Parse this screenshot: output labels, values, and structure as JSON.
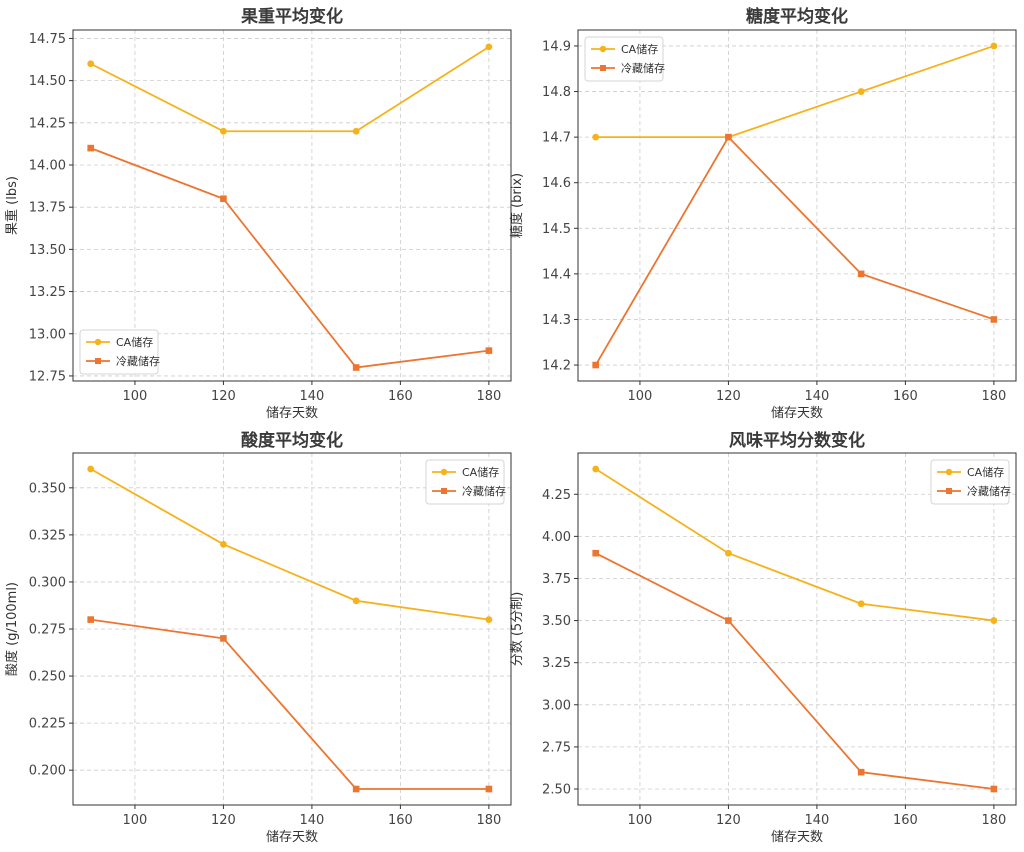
{
  "chart_data": [
    {
      "type": "line",
      "title": "果重平均变化",
      "xlabel": "储存天数",
      "ylabel": "果重 (lbs)",
      "x": [
        90,
        120,
        150,
        180
      ],
      "xlim": [
        86,
        185
      ],
      "xticks": [
        100,
        120,
        140,
        160,
        180
      ],
      "ylim": [
        12.72,
        14.8
      ],
      "yticks": [
        12.75,
        13.0,
        13.25,
        13.5,
        13.75,
        14.0,
        14.25,
        14.5,
        14.75
      ],
      "ytick_labels": [
        "12.75",
        "13.00",
        "13.25",
        "13.50",
        "13.75",
        "14.00",
        "14.25",
        "14.50",
        "14.75"
      ],
      "grid": true,
      "legend_position": "lower-left",
      "series": [
        {
          "name": "CA储存",
          "values": [
            14.6,
            14.2,
            14.2,
            14.7
          ],
          "color": "#F6B21B",
          "marker": "circle"
        },
        {
          "name": "冷藏储存",
          "values": [
            14.1,
            13.8,
            12.8,
            12.9
          ],
          "color": "#EC7530",
          "marker": "square"
        }
      ]
    },
    {
      "type": "line",
      "title": "糖度平均变化",
      "xlabel": "储存天数",
      "ylabel": "糖度 (brix)",
      "x": [
        90,
        120,
        150,
        180
      ],
      "xlim": [
        86,
        185
      ],
      "xticks": [
        100,
        120,
        140,
        160,
        180
      ],
      "ylim": [
        14.165,
        14.935
      ],
      "yticks": [
        14.2,
        14.3,
        14.4,
        14.5,
        14.6,
        14.7,
        14.8,
        14.9
      ],
      "ytick_labels": [
        "14.2",
        "14.3",
        "14.4",
        "14.5",
        "14.6",
        "14.7",
        "14.8",
        "14.9"
      ],
      "grid": true,
      "legend_position": "upper-left",
      "series": [
        {
          "name": "CA储存",
          "values": [
            14.7,
            14.7,
            14.8,
            14.9
          ],
          "color": "#F6B21B",
          "marker": "circle"
        },
        {
          "name": "冷藏储存",
          "values": [
            14.2,
            14.7,
            14.4,
            14.3
          ],
          "color": "#EC7530",
          "marker": "square"
        }
      ]
    },
    {
      "type": "line",
      "title": "酸度平均变化",
      "xlabel": "储存天数",
      "ylabel": "酸度 (g/100ml)",
      "x": [
        90,
        120,
        150,
        180
      ],
      "xlim": [
        86,
        185
      ],
      "xticks": [
        100,
        120,
        140,
        160,
        180
      ],
      "ylim": [
        0.1815,
        0.3685
      ],
      "yticks": [
        0.2,
        0.225,
        0.25,
        0.275,
        0.3,
        0.325,
        0.35
      ],
      "ytick_labels": [
        "0.200",
        "0.225",
        "0.250",
        "0.275",
        "0.300",
        "0.325",
        "0.350"
      ],
      "grid": true,
      "legend_position": "upper-right",
      "series": [
        {
          "name": "CA储存",
          "values": [
            0.36,
            0.32,
            0.29,
            0.28
          ],
          "color": "#F6B21B",
          "marker": "circle"
        },
        {
          "name": "冷藏储存",
          "values": [
            0.28,
            0.27,
            0.19,
            0.19
          ],
          "color": "#EC7530",
          "marker": "square"
        }
      ]
    },
    {
      "type": "line",
      "title": "风味平均分数变化",
      "xlabel": "储存天数",
      "ylabel": "分数 (5分制)",
      "x": [
        90,
        120,
        150,
        180
      ],
      "xlim": [
        86,
        185
      ],
      "xticks": [
        100,
        120,
        140,
        160,
        180
      ],
      "ylim": [
        2.405,
        4.495
      ],
      "yticks": [
        2.5,
        2.75,
        3.0,
        3.25,
        3.5,
        3.75,
        4.0,
        4.25
      ],
      "ytick_labels": [
        "2.50",
        "2.75",
        "3.00",
        "3.25",
        "3.50",
        "3.75",
        "4.00",
        "4.25"
      ],
      "grid": true,
      "legend_position": "upper-right",
      "series": [
        {
          "name": "CA储存",
          "values": [
            4.4,
            3.9,
            3.6,
            3.5
          ],
          "color": "#F6B21B",
          "marker": "circle"
        },
        {
          "name": "冷藏储存",
          "values": [
            3.9,
            3.5,
            2.6,
            2.5
          ],
          "color": "#EC7530",
          "marker": "square"
        }
      ]
    }
  ]
}
